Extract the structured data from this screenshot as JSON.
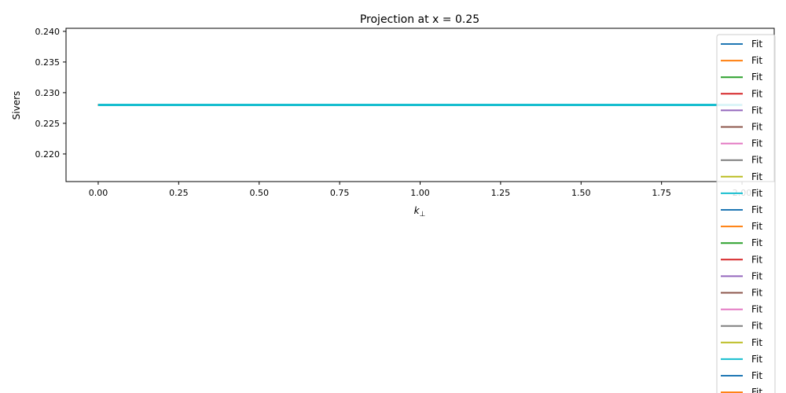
{
  "chart_data": {
    "type": "line",
    "title": "Projection at x = 0.25",
    "xlabel": "k",
    "xlabel_subscript": "⊥",
    "ylabel": "Sivers",
    "xlim": [
      -0.1,
      2.1
    ],
    "ylim": [
      0.2155,
      0.2405
    ],
    "xticks": [
      0.0,
      0.25,
      0.5,
      0.75,
      1.0,
      1.25,
      1.5,
      1.75,
      2.0
    ],
    "xtick_labels": [
      "0.00",
      "0.25",
      "0.50",
      "0.75",
      "1.00",
      "1.25",
      "1.50",
      "1.75",
      "2.00"
    ],
    "yticks": [
      0.22,
      0.225,
      0.23,
      0.235,
      0.24
    ],
    "ytick_labels": [
      "0.220",
      "0.225",
      "0.230",
      "0.235",
      "0.240"
    ],
    "grid": false,
    "legend_position": "top-right",
    "series": [
      {
        "name": "Fit",
        "color": "#1f77b4",
        "x": [
          0.0,
          2.0
        ],
        "y": [
          0.228,
          0.228
        ]
      },
      {
        "name": "Fit",
        "color": "#ff7f0e",
        "x": [
          0.0,
          2.0
        ],
        "y": [
          0.228,
          0.228
        ]
      },
      {
        "name": "Fit",
        "color": "#2ca02c",
        "x": [
          0.0,
          2.0
        ],
        "y": [
          0.228,
          0.228
        ]
      },
      {
        "name": "Fit",
        "color": "#d62728",
        "x": [
          0.0,
          2.0
        ],
        "y": [
          0.228,
          0.228
        ]
      },
      {
        "name": "Fit",
        "color": "#9467bd",
        "x": [
          0.0,
          2.0
        ],
        "y": [
          0.228,
          0.228
        ]
      },
      {
        "name": "Fit",
        "color": "#8c564b",
        "x": [
          0.0,
          2.0
        ],
        "y": [
          0.228,
          0.228
        ]
      },
      {
        "name": "Fit",
        "color": "#e377c2",
        "x": [
          0.0,
          2.0
        ],
        "y": [
          0.228,
          0.228
        ]
      },
      {
        "name": "Fit",
        "color": "#7f7f7f",
        "x": [
          0.0,
          2.0
        ],
        "y": [
          0.228,
          0.228
        ]
      },
      {
        "name": "Fit",
        "color": "#bcbd22",
        "x": [
          0.0,
          2.0
        ],
        "y": [
          0.228,
          0.228
        ]
      },
      {
        "name": "Fit",
        "color": "#17becf",
        "x": [
          0.0,
          2.0
        ],
        "y": [
          0.228,
          0.228
        ]
      },
      {
        "name": "Fit",
        "color": "#1f77b4",
        "x": [
          0.0,
          2.0
        ],
        "y": [
          0.228,
          0.228
        ]
      },
      {
        "name": "Fit",
        "color": "#ff7f0e",
        "x": [
          0.0,
          2.0
        ],
        "y": [
          0.228,
          0.228
        ]
      },
      {
        "name": "Fit",
        "color": "#2ca02c",
        "x": [
          0.0,
          2.0
        ],
        "y": [
          0.228,
          0.228
        ]
      },
      {
        "name": "Fit",
        "color": "#d62728",
        "x": [
          0.0,
          2.0
        ],
        "y": [
          0.228,
          0.228
        ]
      },
      {
        "name": "Fit",
        "color": "#9467bd",
        "x": [
          0.0,
          2.0
        ],
        "y": [
          0.228,
          0.228
        ]
      },
      {
        "name": "Fit",
        "color": "#8c564b",
        "x": [
          0.0,
          2.0
        ],
        "y": [
          0.228,
          0.228
        ]
      },
      {
        "name": "Fit",
        "color": "#e377c2",
        "x": [
          0.0,
          2.0
        ],
        "y": [
          0.228,
          0.228
        ]
      },
      {
        "name": "Fit",
        "color": "#7f7f7f",
        "x": [
          0.0,
          2.0
        ],
        "y": [
          0.228,
          0.228
        ]
      },
      {
        "name": "Fit",
        "color": "#bcbd22",
        "x": [
          0.0,
          2.0
        ],
        "y": [
          0.228,
          0.228
        ]
      },
      {
        "name": "Fit",
        "color": "#17becf",
        "x": [
          0.0,
          2.0
        ],
        "y": [
          0.228,
          0.228
        ]
      },
      {
        "name": "Fit",
        "color": "#1f77b4",
        "x": [
          0.0,
          2.0
        ],
        "y": [
          0.228,
          0.228
        ]
      },
      {
        "name": "Fit",
        "color": "#ff7f0e",
        "x": [
          0.0,
          2.0
        ],
        "y": [
          0.228,
          0.228
        ]
      },
      {
        "name": "Fit",
        "color": "#2ca02c",
        "x": [
          0.0,
          2.0
        ],
        "y": [
          0.228,
          0.228
        ]
      },
      {
        "name": "Fit",
        "color": "#d62728",
        "x": [
          0.0,
          2.0
        ],
        "y": [
          0.228,
          0.228
        ]
      },
      {
        "name": "Fit",
        "color": "#9467bd",
        "x": [
          0.0,
          2.0
        ],
        "y": [
          0.228,
          0.228
        ]
      },
      {
        "name": "Fit",
        "color": "#8c564b",
        "x": [
          0.0,
          2.0
        ],
        "y": [
          0.228,
          0.228
        ]
      },
      {
        "name": "Fit",
        "color": "#e377c2",
        "x": [
          0.0,
          2.0
        ],
        "y": [
          0.228,
          0.228
        ]
      },
      {
        "name": "Fit",
        "color": "#7f7f7f",
        "x": [
          0.0,
          2.0
        ],
        "y": [
          0.228,
          0.228
        ]
      },
      {
        "name": "Fit",
        "color": "#bcbd22",
        "x": [
          0.0,
          2.0
        ],
        "y": [
          0.228,
          0.228
        ]
      },
      {
        "name": "Fit",
        "color": "#17becf",
        "x": [
          0.0,
          2.0
        ],
        "y": [
          0.228,
          0.228
        ]
      }
    ]
  }
}
